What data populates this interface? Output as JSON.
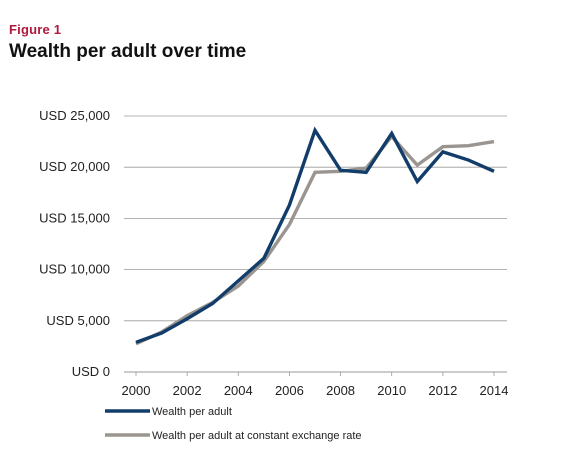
{
  "figure_label": "Figure 1",
  "title": "Wealth per adult over time",
  "colors": {
    "series_1": "#123d6b",
    "series_2": "#9a9590",
    "grid": "#9a9a9a",
    "label": "#b0193c"
  },
  "chart_data": {
    "type": "line",
    "x": [
      2000,
      2001,
      2002,
      2003,
      2004,
      2005,
      2006,
      2007,
      2008,
      2009,
      2010,
      2011,
      2012,
      2013,
      2014
    ],
    "series": [
      {
        "name": "Wealth per adult",
        "values": [
          2900,
          3800,
          5200,
          6700,
          8900,
          11100,
          16300,
          23600,
          19700,
          19500,
          23300,
          18600,
          21500,
          20700,
          19600
        ]
      },
      {
        "name": "Wealth per adult at constant exchange rate",
        "values": [
          2750,
          3900,
          5500,
          6800,
          8400,
          10800,
          14400,
          19500,
          19600,
          19900,
          23000,
          20200,
          22000,
          22100,
          22500
        ]
      }
    ],
    "ylim": [
      0,
      25000
    ],
    "yticks": [
      0,
      5000,
      10000,
      15000,
      20000,
      25000
    ],
    "ytick_labels": [
      "USD 0",
      "USD 5,000",
      "USD 10,000",
      "USD 15,000",
      "USD 20,000",
      "USD 25,000"
    ],
    "xticks": [
      2000,
      2002,
      2004,
      2006,
      2008,
      2010,
      2012,
      2014
    ],
    "xtick_labels": [
      "2000",
      "2002",
      "2004",
      "2006",
      "2008",
      "2010",
      "2012",
      "2014"
    ],
    "grid": "horizontal",
    "legend_position": "bottom-left"
  }
}
